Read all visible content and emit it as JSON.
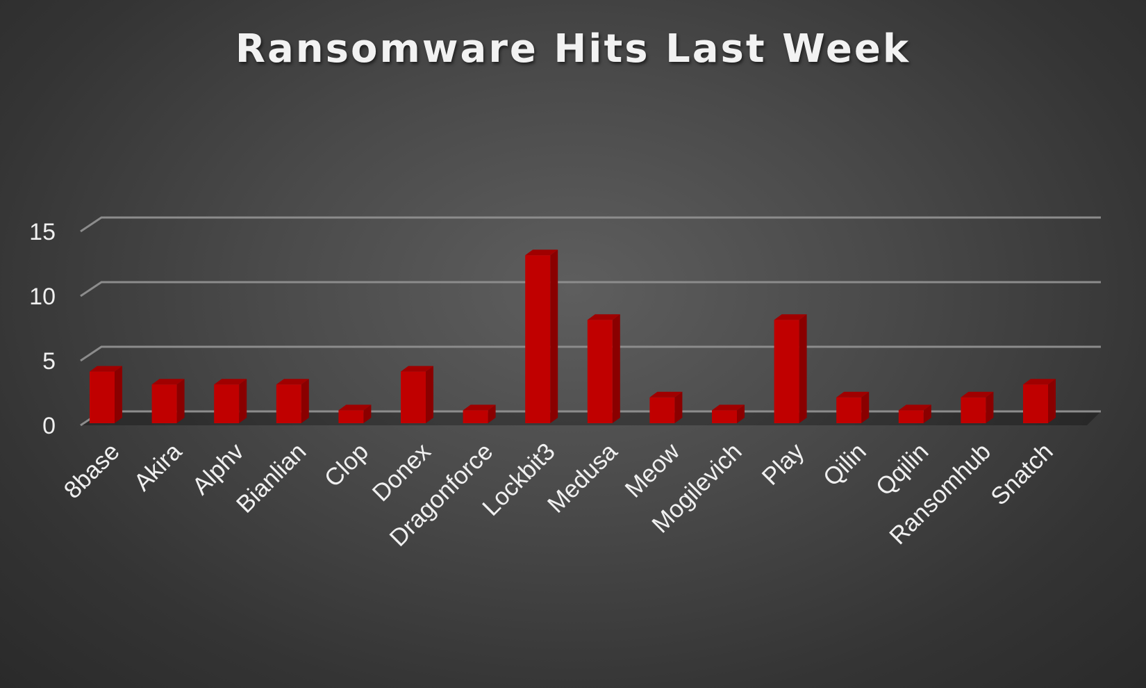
{
  "colors": {
    "bar_front": "#c00000",
    "bar_side": "#8a0000",
    "bar_top": "#a00000",
    "gridline": "#8c8c8c",
    "text": "#f0f0f0"
  },
  "chart_data": {
    "type": "bar",
    "title": "Ransomware Hits Last Week",
    "xlabel": "",
    "ylabel": "",
    "ylim": [
      0,
      15
    ],
    "yticks": [
      0,
      5,
      10,
      15
    ],
    "grid": true,
    "style": "3d-column",
    "categories": [
      "8base",
      "Akira",
      "Alphv",
      "Bianlian",
      "Clop",
      "Donex",
      "Dragonforce",
      "Lockbit3",
      "Medusa",
      "Meow",
      "Mogilevich",
      "Play",
      "Qilin",
      "Qqilin",
      "Ransomhub",
      "Snatch"
    ],
    "values": [
      4,
      3,
      3,
      3,
      1,
      4,
      1,
      13,
      8,
      2,
      1,
      8,
      2,
      1,
      2,
      3
    ]
  }
}
